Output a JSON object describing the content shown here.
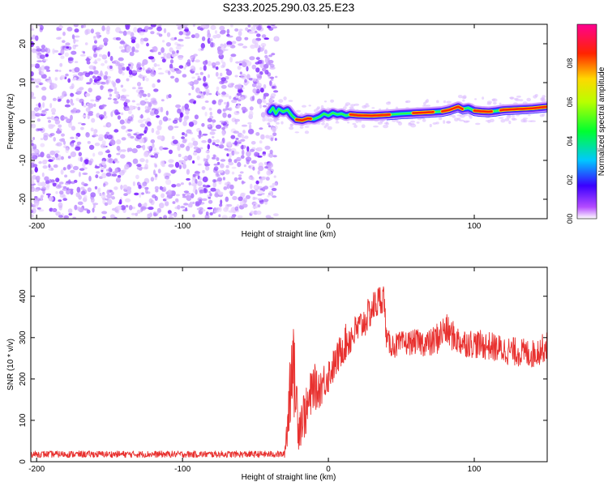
{
  "title": "S233.2025.290.03.25.E23",
  "chart_data": [
    {
      "type": "heatmap",
      "panel": "top",
      "xlabel": "Height of straight line (km)",
      "ylabel": "Frequency (Hz)",
      "xlim": [
        -204,
        150
      ],
      "ylim": [
        -25,
        25
      ],
      "xticks": [
        -200,
        -100,
        0,
        100
      ],
      "yticks": [
        -20,
        -10,
        0,
        10,
        20
      ],
      "noise_region_x": [
        -204,
        -40
      ],
      "ridge": {
        "x": [
          -40,
          -38,
          -36,
          -34,
          -31,
          -28,
          -25,
          -22,
          -18,
          -14,
          -10,
          -6,
          -3,
          0,
          3,
          6,
          9,
          12,
          15,
          20,
          30,
          40,
          50,
          60,
          70,
          78,
          83,
          86,
          89,
          92,
          96,
          100,
          105,
          110,
          115,
          120,
          130,
          140,
          150
        ],
        "freq": [
          2.5,
          3.5,
          2.0,
          3.2,
          2.5,
          3.0,
          1.5,
          0.5,
          0.3,
          0.8,
          0.6,
          1.2,
          2.0,
          1.5,
          2.2,
          1.8,
          2.0,
          1.5,
          1.8,
          1.6,
          1.5,
          1.7,
          2.0,
          2.2,
          2.4,
          2.6,
          3.0,
          3.4,
          3.8,
          3.2,
          3.5,
          2.8,
          2.6,
          2.5,
          2.7,
          3.0,
          3.2,
          3.4,
          3.8
        ]
      },
      "colorbar": {
        "label": "Normalized spectral amplitude",
        "range": [
          0,
          1
        ],
        "ticks": [
          0.0,
          0.2,
          0.4,
          0.6,
          0.8
        ],
        "tick_labels": [
          "0.0",
          "0.2",
          "0.4",
          "0.6",
          "0.8"
        ]
      }
    },
    {
      "type": "line",
      "panel": "bottom",
      "xlabel": "Height of straight line (km)",
      "ylabel": "SNR (10 * v/v)",
      "xlim": [
        -204,
        150
      ],
      "ylim": [
        0,
        470
      ],
      "xticks": [
        -200,
        -100,
        0,
        100
      ],
      "yticks": [
        0,
        100,
        200,
        300,
        400
      ],
      "series": [
        {
          "name": "SNR",
          "color": "#e8312f",
          "envelope_x": [
            -204,
            -30,
            -27,
            -25,
            -22,
            -20,
            -18,
            -15,
            -12,
            -10,
            -8,
            -5,
            -2,
            0,
            5,
            10,
            15,
            20,
            25,
            30,
            35,
            38,
            40,
            45,
            50,
            60,
            70,
            75,
            80,
            90,
            100,
            110,
            120,
            130,
            140,
            150
          ],
          "envelope_mean": [
            18,
            18,
            140,
            260,
            150,
            90,
            110,
            120,
            160,
            190,
            170,
            185,
            200,
            210,
            240,
            280,
            300,
            320,
            340,
            370,
            390,
            400,
            290,
            280,
            285,
            290,
            285,
            300,
            320,
            290,
            285,
            280,
            270,
            265,
            260,
            280
          ],
          "envelope_amp": [
            8,
            8,
            120,
            110,
            90,
            70,
            60,
            60,
            60,
            55,
            50,
            50,
            45,
            45,
            40,
            45,
            45,
            40,
            40,
            40,
            40,
            35,
            30,
            30,
            30,
            30,
            35,
            40,
            40,
            35,
            35,
            35,
            35,
            35,
            35,
            35
          ]
        }
      ]
    }
  ]
}
